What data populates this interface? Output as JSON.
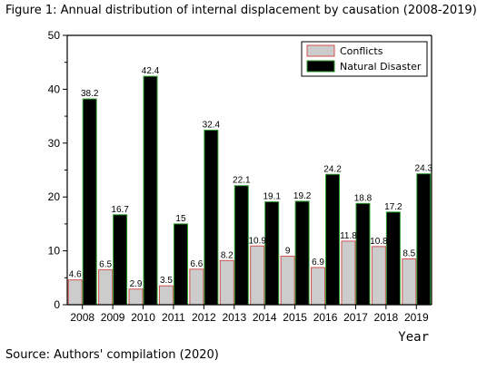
{
  "figure_title": "Figure 1: Annual distribution of internal displacement by causation (2008-2019)",
  "source_note": "Source: Authors' compilation (2020)",
  "chart_data": {
    "type": "bar",
    "title": "",
    "xlabel": "Year",
    "ylabel": "",
    "ylim": [
      0,
      50
    ],
    "yticks": [
      0,
      10,
      20,
      30,
      40,
      50
    ],
    "grid": false,
    "legend_position": "top-right",
    "categories": [
      "2008",
      "2009",
      "2010",
      "2011",
      "2012",
      "2013",
      "2014",
      "2015",
      "2016",
      "2017",
      "2018",
      "2019"
    ],
    "series": [
      {
        "name": "Conflicts",
        "color": "#cccccc",
        "edge_color": "#d05050",
        "values": [
          4.6,
          6.5,
          2.9,
          3.5,
          6.6,
          8.2,
          10.9,
          9,
          6.9,
          11.8,
          10.8,
          8.5
        ],
        "labels": [
          "4.6",
          "6.5",
          "2.9",
          "3.5",
          "6.6",
          "8.2",
          "10.9",
          "9",
          "6.9",
          "11.8",
          "10.8",
          "8.5"
        ]
      },
      {
        "name": "Natural Disaster",
        "color": "#000000",
        "edge_color": "#2e9e2e",
        "values": [
          38.2,
          16.7,
          42.4,
          15,
          32.4,
          22.1,
          19.1,
          19.2,
          24.2,
          18.8,
          17.2,
          24.3
        ],
        "labels": [
          "38.2",
          "16.7",
          "42.4",
          "15",
          "32.4",
          "22.1",
          "19.1",
          "19.2",
          "24.2",
          "18.8",
          "17.2",
          "24.3"
        ]
      }
    ]
  }
}
